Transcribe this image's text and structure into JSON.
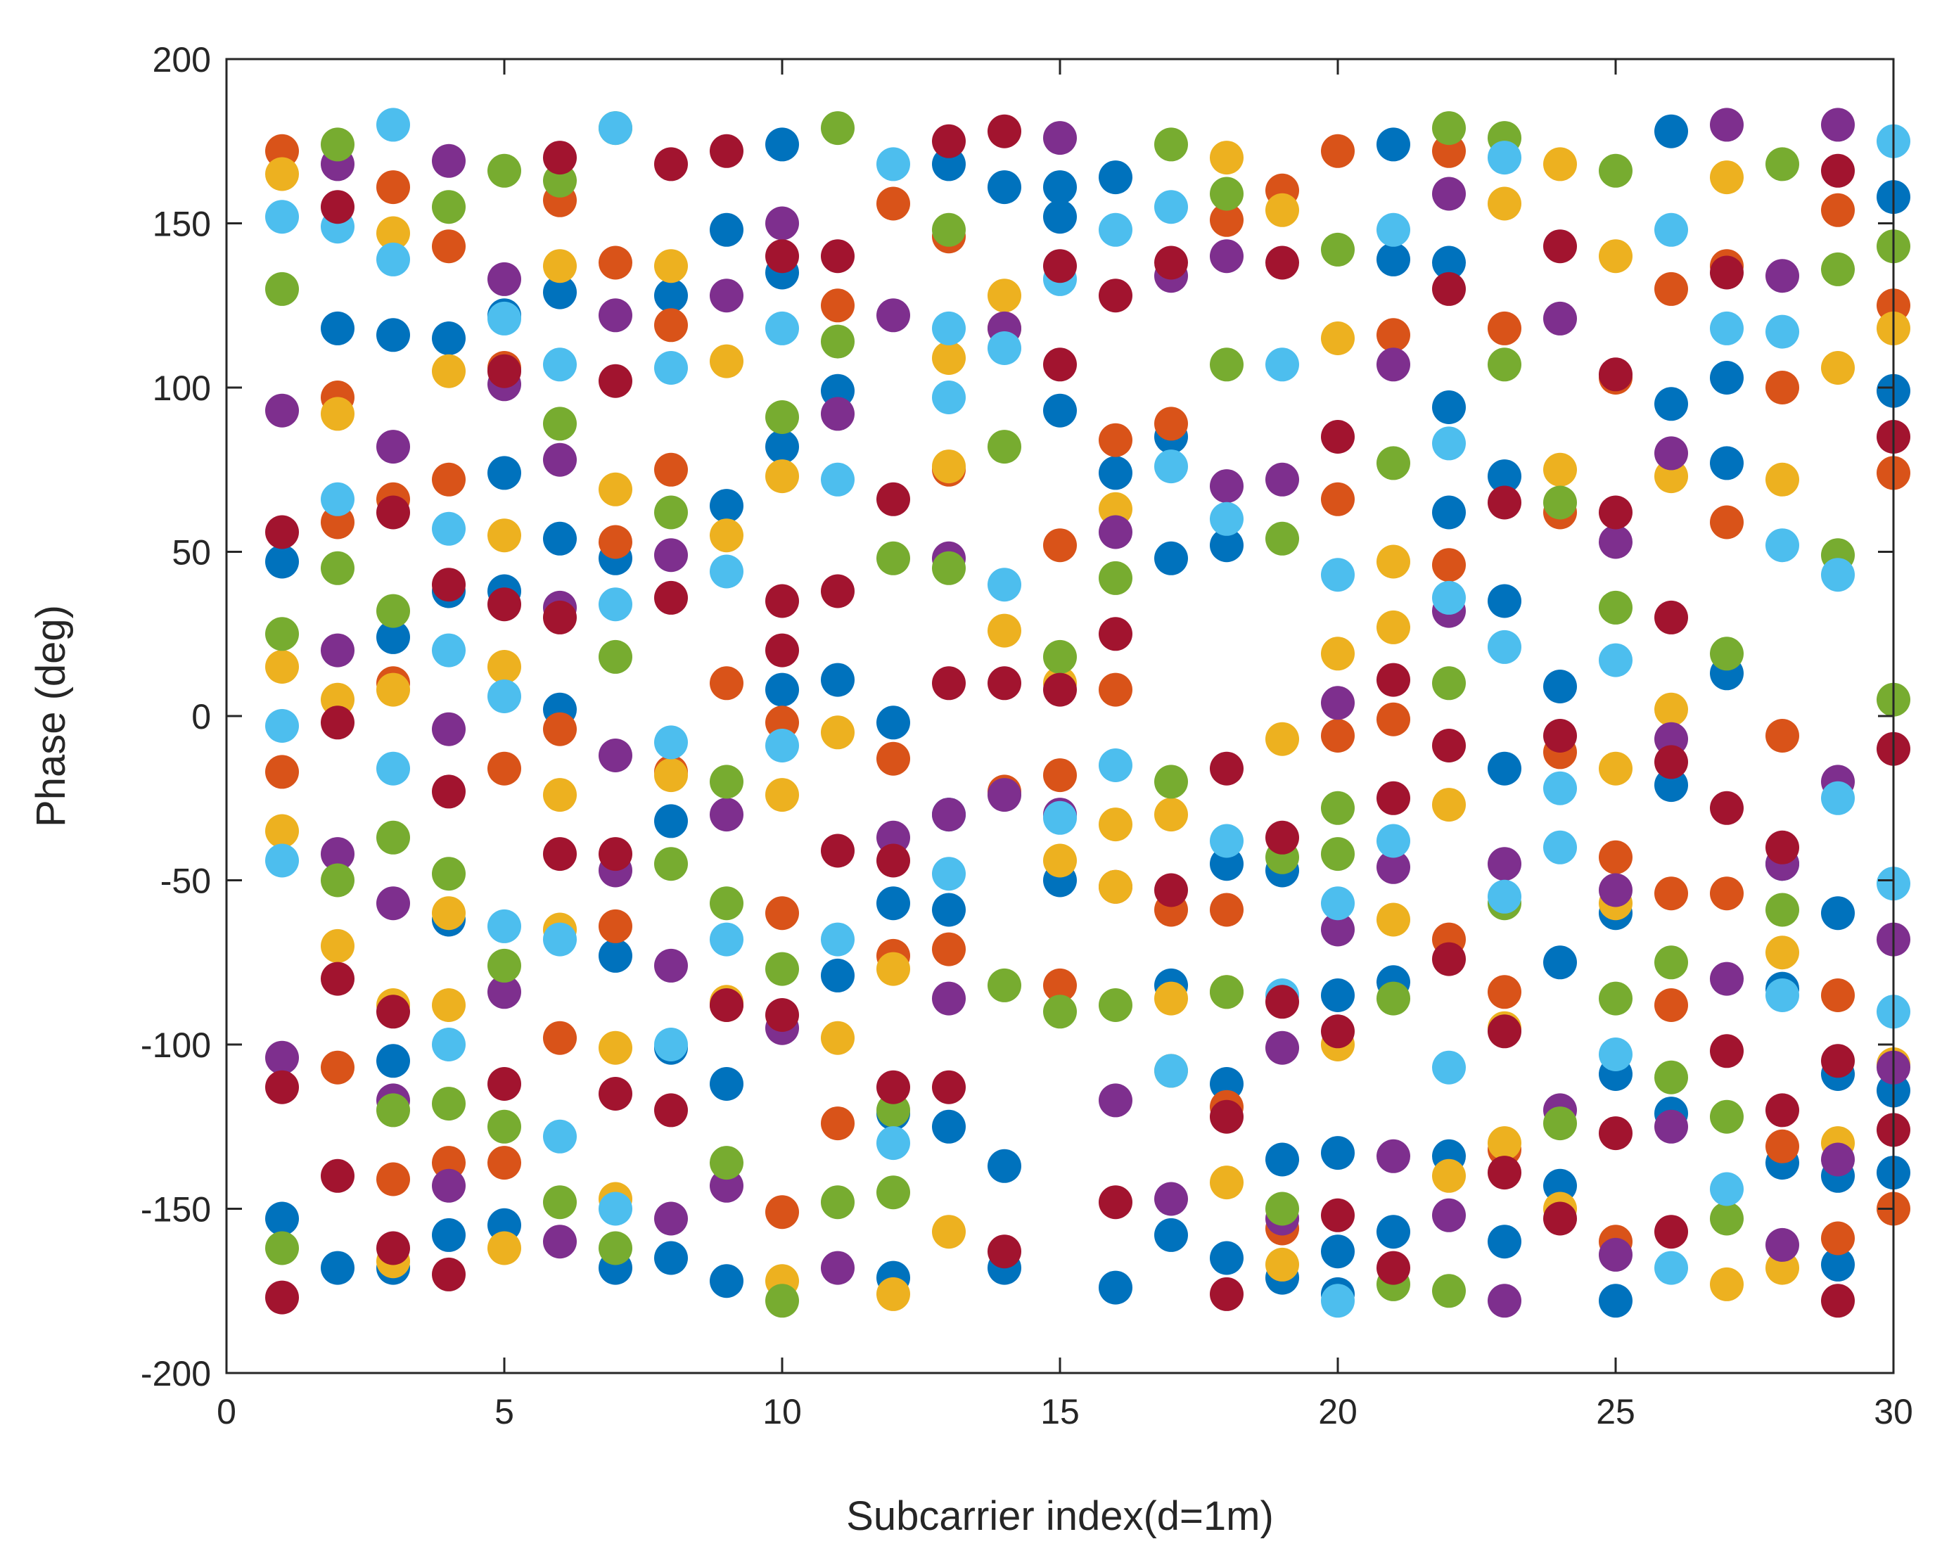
{
  "chart_data": {
    "type": "scatter",
    "title": "",
    "xlabel": "Subcarrier index(d=1m)",
    "ylabel": "Phase (deg)",
    "xlim": [
      0,
      30
    ],
    "ylim": [
      -200,
      200
    ],
    "x_ticks": [
      0,
      5,
      10,
      15,
      20,
      25,
      30
    ],
    "y_ticks": [
      -200,
      -150,
      -100,
      -50,
      0,
      50,
      100,
      150,
      200
    ],
    "x_tick_labels": [
      "0",
      "5",
      "10",
      "15",
      "20",
      "25",
      "30"
    ],
    "y_tick_labels": [
      "-200",
      "-150",
      "-100",
      "-50",
      "0",
      "50",
      "100",
      "150",
      "200"
    ],
    "grid": false,
    "box": true,
    "colors": [
      "#0072BD",
      "#D95319",
      "#EDB120",
      "#7E2F8E",
      "#77AC30",
      "#4DBEEE",
      "#A2142F"
    ],
    "series": [
      {
        "color": "#0072BD",
        "x": [
          1,
          1,
          2,
          2,
          3,
          3,
          3,
          3,
          4,
          4,
          4,
          4,
          5,
          5,
          5,
          5,
          6,
          6,
          6,
          7,
          7,
          7,
          8,
          8,
          8,
          8,
          9,
          9,
          9,
          9,
          10,
          10,
          10,
          10,
          11,
          11,
          11,
          12,
          12,
          12,
          12,
          13,
          13,
          13,
          13,
          14,
          14,
          14,
          15,
          15,
          15,
          15,
          16,
          16,
          16,
          17,
          17,
          17,
          17,
          18,
          18,
          18,
          18,
          19,
          19,
          19,
          20,
          20,
          20,
          20,
          21,
          21,
          21,
          21,
          22,
          22,
          22,
          22,
          23,
          23,
          23,
          23,
          24,
          24,
          24,
          25,
          25,
          25,
          26,
          26,
          26,
          26,
          27,
          27,
          27,
          28,
          28,
          28,
          29,
          29,
          29,
          29,
          30,
          30,
          30,
          30
        ],
        "y": [
          47,
          -153,
          118,
          -168,
          116,
          24,
          -105,
          -168,
          115,
          38,
          -62,
          -158,
          122,
          74,
          38,
          -155,
          129,
          54,
          2,
          48,
          -73,
          -168,
          128,
          -32,
          -101,
          -165,
          148,
          64,
          -112,
          -172,
          174,
          135,
          82,
          8,
          99,
          11,
          -79,
          -2,
          -57,
          -121,
          -171,
          168,
          -59,
          -125,
          -30,
          161,
          -137,
          -168,
          161,
          152,
          93,
          -50,
          164,
          74,
          -174,
          85,
          48,
          -82,
          -158,
          52,
          -45,
          -112,
          -165,
          -47,
          -135,
          -171,
          -85,
          -133,
          -163,
          -176,
          174,
          139,
          -81,
          -157,
          138,
          94,
          62,
          -134,
          73,
          35,
          -16,
          -160,
          9,
          -75,
          -143,
          -60,
          -109,
          -178,
          178,
          95,
          -21,
          -121,
          103,
          77,
          13,
          -45,
          -83,
          -136,
          -167,
          -60,
          -109,
          -140,
          158,
          99,
          -139,
          -114
        ]
      },
      {
        "color": "#D95319",
        "x": [
          1,
          1,
          2,
          2,
          2,
          3,
          3,
          3,
          3,
          4,
          4,
          4,
          5,
          5,
          5,
          6,
          6,
          6,
          7,
          7,
          7,
          8,
          8,
          8,
          9,
          9,
          10,
          10,
          10,
          11,
          11,
          12,
          12,
          12,
          13,
          13,
          13,
          14,
          14,
          15,
          15,
          15,
          16,
          16,
          16,
          17,
          17,
          18,
          18,
          18,
          19,
          19,
          20,
          20,
          20,
          21,
          21,
          22,
          22,
          22,
          23,
          23,
          23,
          24,
          24,
          25,
          25,
          25,
          26,
          26,
          26,
          27,
          27,
          27,
          28,
          28,
          28,
          29,
          29,
          29,
          30,
          30,
          30
        ],
        "y": [
          172,
          -17,
          97,
          59,
          -107,
          161,
          66,
          10,
          -141,
          143,
          72,
          -136,
          106,
          -16,
          -136,
          157,
          -4,
          -98,
          138,
          53,
          -64,
          119,
          75,
          -17,
          10,
          -88,
          -2,
          -60,
          -151,
          125,
          -124,
          156,
          -13,
          -73,
          146,
          75,
          -71,
          118,
          -23,
          52,
          -18,
          -82,
          84,
          8,
          -52,
          89,
          -59,
          151,
          -59,
          -119,
          160,
          -156,
          172,
          66,
          -6,
          116,
          -1,
          172,
          46,
          -68,
          118,
          -84,
          -132,
          62,
          -11,
          103,
          -43,
          -160,
          130,
          -54,
          -88,
          137,
          59,
          -54,
          100,
          -6,
          -131,
          154,
          -85,
          -159,
          125,
          74,
          -150
        ]
      },
      {
        "color": "#EDB120",
        "x": [
          1,
          1,
          1,
          2,
          2,
          2,
          3,
          3,
          3,
          3,
          4,
          4,
          4,
          5,
          5,
          5,
          6,
          6,
          6,
          7,
          7,
          7,
          8,
          8,
          9,
          9,
          9,
          10,
          10,
          10,
          11,
          11,
          12,
          12,
          13,
          13,
          13,
          14,
          14,
          15,
          15,
          16,
          16,
          16,
          17,
          17,
          17,
          18,
          18,
          18,
          19,
          19,
          19,
          20,
          20,
          20,
          21,
          21,
          21,
          22,
          22,
          23,
          23,
          23,
          24,
          24,
          24,
          25,
          25,
          25,
          26,
          26,
          27,
          27,
          28,
          28,
          28,
          29,
          29,
          30,
          30
        ],
        "y": [
          165,
          15,
          -35,
          92,
          5,
          -70,
          147,
          8,
          -88,
          -166,
          105,
          -88,
          -60,
          55,
          15,
          -162,
          137,
          -24,
          -65,
          69,
          -101,
          -147,
          137,
          -18,
          108,
          55,
          -87,
          73,
          -24,
          -172,
          -5,
          -98,
          -77,
          -176,
          109,
          76,
          -157,
          128,
          26,
          -44,
          10,
          -33,
          63,
          -52,
          -30,
          -86,
          -108,
          170,
          -84,
          -142,
          154,
          -7,
          -167,
          115,
          19,
          -100,
          47,
          27,
          -62,
          -27,
          -140,
          156,
          -95,
          -130,
          168,
          75,
          -150,
          140,
          -16,
          -57,
          73,
          2,
          164,
          -173,
          -72,
          72,
          -168,
          106,
          -130,
          118,
          -106
        ]
      },
      {
        "color": "#7E2F8E",
        "x": [
          1,
          1,
          2,
          2,
          2,
          3,
          3,
          3,
          4,
          4,
          4,
          5,
          5,
          5,
          6,
          6,
          6,
          7,
          7,
          7,
          8,
          8,
          8,
          9,
          9,
          9,
          10,
          10,
          11,
          11,
          12,
          12,
          13,
          13,
          13,
          14,
          14,
          15,
          15,
          16,
          16,
          17,
          17,
          18,
          18,
          19,
          19,
          19,
          20,
          20,
          21,
          21,
          21,
          22,
          22,
          22,
          23,
          23,
          24,
          24,
          25,
          25,
          25,
          26,
          26,
          26,
          27,
          27,
          28,
          28,
          28,
          29,
          29,
          29,
          30,
          30
        ],
        "y": [
          93,
          -104,
          168,
          20,
          -42,
          82,
          -57,
          -117,
          169,
          -4,
          -143,
          133,
          101,
          -84,
          78,
          33,
          -160,
          122,
          -12,
          -47,
          49,
          -76,
          -153,
          128,
          -30,
          -143,
          150,
          -95,
          92,
          -168,
          122,
          -37,
          48,
          -30,
          -86,
          118,
          -24,
          176,
          -30,
          56,
          -117,
          134,
          -147,
          140,
          70,
          72,
          -101,
          -153,
          4,
          -65,
          107,
          -46,
          -134,
          159,
          32,
          -152,
          -45,
          -178,
          121,
          -120,
          53,
          -53,
          -164,
          80,
          -7,
          -125,
          180,
          -80,
          134,
          -45,
          -161,
          180,
          -135,
          -20,
          -68,
          -107
        ]
      },
      {
        "color": "#77AC30",
        "x": [
          1,
          1,
          1,
          2,
          2,
          2,
          3,
          3,
          3,
          4,
          4,
          4,
          5,
          5,
          5,
          6,
          6,
          6,
          7,
          7,
          7,
          8,
          8,
          9,
          9,
          9,
          10,
          10,
          10,
          11,
          11,
          11,
          12,
          12,
          12,
          13,
          13,
          14,
          14,
          15,
          15,
          16,
          16,
          17,
          17,
          18,
          18,
          18,
          19,
          19,
          19,
          20,
          20,
          20,
          21,
          21,
          21,
          22,
          22,
          22,
          23,
          23,
          23,
          24,
          24,
          25,
          25,
          25,
          26,
          26,
          27,
          27,
          27,
          28,
          28,
          29,
          29,
          30,
          30
        ],
        "y": [
          130,
          25,
          -162,
          174,
          45,
          -50,
          32,
          -37,
          -120,
          155,
          -48,
          -118,
          166,
          -76,
          -125,
          163,
          89,
          -148,
          179,
          18,
          -162,
          62,
          -45,
          -20,
          -57,
          -136,
          91,
          -77,
          -178,
          179,
          114,
          -148,
          48,
          -120,
          -145,
          148,
          45,
          82,
          -82,
          18,
          -90,
          42,
          -88,
          174,
          -20,
          159,
          107,
          -84,
          54,
          -43,
          -150,
          142,
          -28,
          -42,
          77,
          -86,
          -173,
          179,
          10,
          -175,
          176,
          107,
          -57,
          65,
          -124,
          166,
          33,
          -86,
          -75,
          -110,
          19,
          -122,
          -153,
          168,
          -59,
          136,
          49,
          143,
          5
        ]
      },
      {
        "color": "#4DBEEE",
        "x": [
          1,
          1,
          1,
          2,
          2,
          3,
          3,
          3,
          4,
          4,
          4,
          5,
          5,
          5,
          6,
          6,
          6,
          7,
          7,
          7,
          8,
          8,
          8,
          9,
          9,
          10,
          10,
          11,
          11,
          12,
          12,
          13,
          13,
          13,
          14,
          14,
          15,
          15,
          16,
          16,
          17,
          17,
          17,
          18,
          18,
          19,
          19,
          20,
          20,
          20,
          21,
          21,
          22,
          22,
          22,
          23,
          23,
          23,
          24,
          24,
          25,
          25,
          26,
          26,
          27,
          27,
          28,
          28,
          28,
          29,
          29,
          30,
          30,
          30
        ],
        "y": [
          152,
          -3,
          -44,
          149,
          66,
          180,
          139,
          -16,
          57,
          20,
          -100,
          121,
          6,
          -64,
          107,
          -68,
          -128,
          179,
          34,
          -150,
          106,
          -8,
          -100,
          44,
          -68,
          118,
          -9,
          72,
          -68,
          168,
          -130,
          118,
          97,
          -48,
          112,
          40,
          133,
          -31,
          148,
          -15,
          155,
          76,
          -108,
          60,
          -38,
          107,
          -85,
          43,
          -57,
          -178,
          148,
          -38,
          83,
          -107,
          36,
          170,
          21,
          -55,
          -22,
          -40,
          17,
          -103,
          148,
          -168,
          118,
          -144,
          117,
          52,
          -85,
          43,
          -25,
          175,
          -51,
          -90
        ]
      },
      {
        "color": "#A2142F",
        "x": [
          1,
          1,
          1,
          2,
          2,
          2,
          2,
          3,
          3,
          3,
          4,
          4,
          4,
          5,
          5,
          5,
          6,
          6,
          6,
          7,
          7,
          7,
          8,
          8,
          8,
          9,
          9,
          10,
          10,
          10,
          10,
          11,
          11,
          11,
          12,
          12,
          12,
          13,
          13,
          13,
          14,
          14,
          14,
          15,
          15,
          15,
          16,
          16,
          16,
          17,
          17,
          18,
          18,
          18,
          19,
          19,
          19,
          20,
          20,
          20,
          21,
          21,
          21,
          22,
          22,
          22,
          23,
          23,
          23,
          24,
          24,
          24,
          25,
          25,
          25,
          26,
          26,
          26,
          27,
          27,
          27,
          28,
          28,
          29,
          29,
          29,
          30,
          30,
          30
        ],
        "y": [
          56,
          -113,
          -177,
          155,
          -2,
          -80,
          -140,
          62,
          -90,
          -162,
          40,
          -23,
          -170,
          105,
          -112,
          34,
          170,
          30,
          -42,
          102,
          -42,
          -115,
          168,
          36,
          -120,
          172,
          -88,
          140,
          35,
          -91,
          20,
          140,
          38,
          -41,
          66,
          -113,
          -44,
          175,
          -113,
          10,
          178,
          10,
          -163,
          137,
          107,
          8,
          -148,
          128,
          25,
          138,
          -53,
          -16,
          -122,
          -176,
          138,
          -37,
          -87,
          85,
          -96,
          -152,
          11,
          -168,
          -25,
          130,
          -9,
          -74,
          65,
          -96,
          -139,
          -6,
          -153,
          143,
          -127,
          62,
          104,
          -157,
          -14,
          30,
          -102,
          135,
          -28,
          -120,
          -40,
          -105,
          -178,
          166,
          -126,
          85,
          -10
        ]
      }
    ]
  }
}
